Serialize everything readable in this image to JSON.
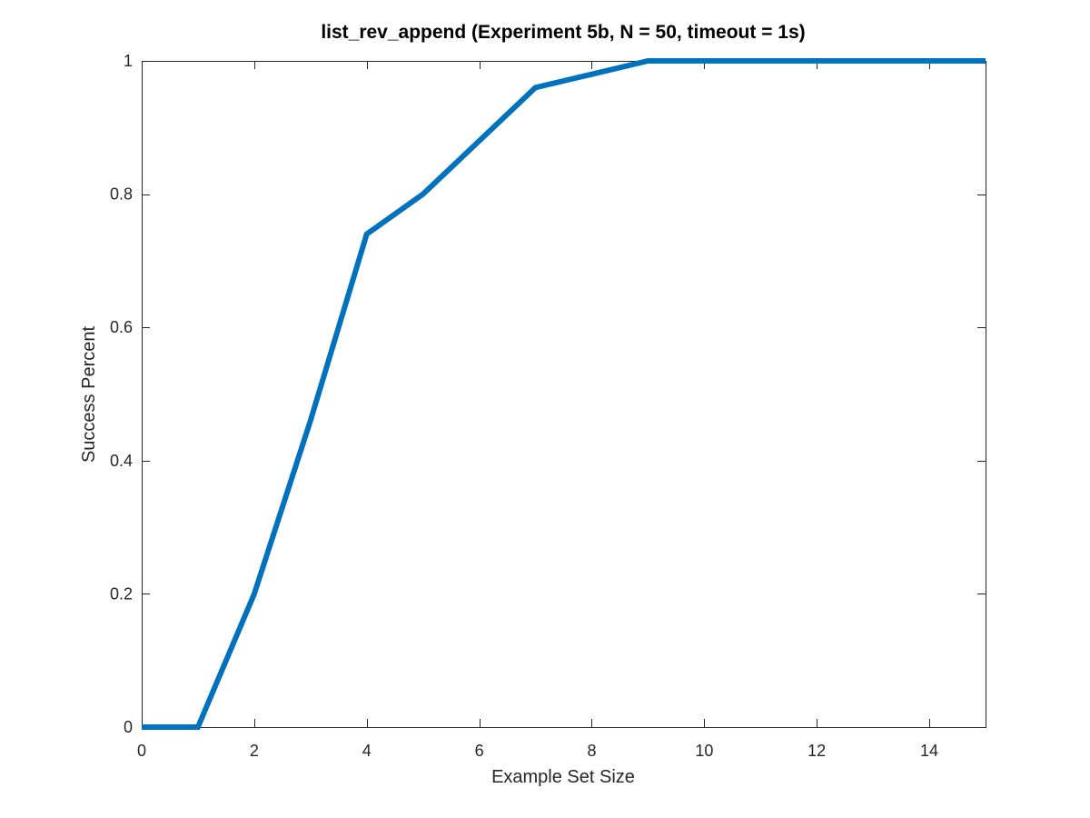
{
  "chart_data": {
    "type": "line",
    "title": "list_rev_append (Experiment 5b, N = 50, timeout = 1s)",
    "xlabel": "Example Set Size",
    "ylabel": "Success Percent",
    "xlim": [
      0,
      15
    ],
    "ylim": [
      0,
      1
    ],
    "xticks": [
      0,
      2,
      4,
      6,
      8,
      10,
      12,
      14
    ],
    "xtick_labels": [
      "0",
      "2",
      "4",
      "6",
      "8",
      "10",
      "12",
      "14"
    ],
    "yticks": [
      0,
      0.2,
      0.4,
      0.6,
      0.8,
      1
    ],
    "ytick_labels": [
      "0",
      "0.2",
      "0.4",
      "0.6",
      "0.8",
      "1"
    ],
    "grid": false,
    "series": [
      {
        "color": "#0072BD",
        "x": [
          0,
          1,
          2,
          3,
          4,
          5,
          6,
          7,
          8,
          9,
          10,
          11,
          12,
          13,
          14,
          15
        ],
        "y": [
          0,
          0,
          0.2,
          0.46,
          0.74,
          0.8,
          0.88,
          0.96,
          0.98,
          1,
          1,
          1,
          1,
          1,
          1,
          1
        ]
      }
    ]
  }
}
